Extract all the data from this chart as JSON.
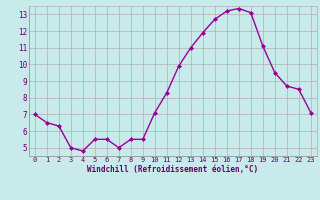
{
  "x": [
    0,
    1,
    2,
    3,
    4,
    5,
    6,
    7,
    8,
    9,
    10,
    11,
    12,
    13,
    14,
    15,
    16,
    17,
    18,
    19,
    20,
    21,
    22,
    23
  ],
  "y": [
    7.0,
    6.5,
    6.3,
    5.0,
    4.8,
    5.5,
    5.5,
    5.0,
    5.5,
    5.5,
    7.1,
    8.3,
    9.9,
    11.0,
    11.9,
    12.7,
    13.2,
    13.35,
    13.1,
    11.1,
    9.5,
    8.7,
    8.5,
    7.1
  ],
  "xlabel": "Windchill (Refroidissement éolien,°C)",
  "ylim": [
    4.5,
    13.5
  ],
  "yticks": [
    5,
    6,
    7,
    8,
    9,
    10,
    11,
    12,
    13
  ],
  "xticks": [
    0,
    1,
    2,
    3,
    4,
    5,
    6,
    7,
    8,
    9,
    10,
    11,
    12,
    13,
    14,
    15,
    16,
    17,
    18,
    19,
    20,
    21,
    22,
    23
  ],
  "line_color": "#990099",
  "marker": "D",
  "marker_size": 2.0,
  "bg_color": "#c8eaea",
  "grid_color": "#b0b0b0",
  "font_family": "monospace",
  "tick_color": "#660066",
  "label_color": "#660066"
}
